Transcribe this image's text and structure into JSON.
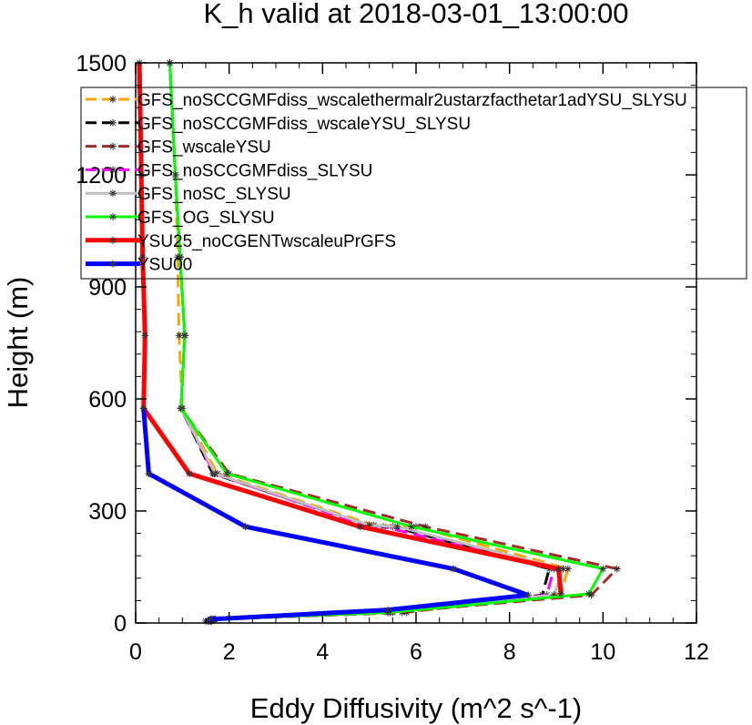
{
  "chart_data": {
    "type": "line",
    "title": "K_h valid at 2018-03-01_13:00:00",
    "xlabel": "Eddy Diffusivity (m^2 s^-1)",
    "ylabel": "Height (m)",
    "xlim": [
      0,
      12
    ],
    "ylim": [
      0,
      1500
    ],
    "xticks": [
      "0",
      "2",
      "4",
      "6",
      "8",
      "10",
      "12"
    ],
    "yticks": [
      "0",
      "300",
      "600",
      "900",
      "1200",
      "1500"
    ],
    "legend_position": "top-right, inside plot",
    "grid": false,
    "series": [
      {
        "name": "GFS_noSCCGMFdiss_wscalethermalr2ustarzfacthetar1adYSU_SLYSU",
        "color": "#ffa500",
        "dash": "dashed",
        "width": 3,
        "points": [
          [
            1.62,
            5
          ],
          [
            1.7,
            10
          ],
          [
            5.8,
            28
          ],
          [
            9.1,
            78
          ],
          [
            9.25,
            145
          ],
          [
            6.0,
            258
          ],
          [
            5.1,
            262
          ],
          [
            1.75,
            400
          ],
          [
            1.0,
            575
          ],
          [
            0.93,
            770
          ],
          [
            0.9,
            980
          ],
          [
            0.85,
            1200
          ],
          [
            0.73,
            1500
          ]
        ]
      },
      {
        "name": "GFS_noSCCGMFdiss_wscaleYSU_SLYSU",
        "color": "#000000",
        "dash": "dashed",
        "width": 3,
        "points": [
          [
            1.6,
            5
          ],
          [
            1.68,
            10
          ],
          [
            5.7,
            28
          ],
          [
            8.7,
            75
          ],
          [
            8.85,
            145
          ],
          [
            5.5,
            258
          ],
          [
            5.0,
            262
          ],
          [
            1.65,
            400
          ],
          [
            0.97,
            575
          ],
          [
            1.05,
            770
          ],
          [
            0.95,
            980
          ],
          [
            0.85,
            1200
          ],
          [
            0.73,
            1500
          ]
        ]
      },
      {
        "name": "GFS_wscaleYSU",
        "color": "#a52a2a",
        "dash": "dashed",
        "width": 3,
        "points": [
          [
            1.55,
            5
          ],
          [
            1.62,
            10
          ],
          [
            5.5,
            28
          ],
          [
            9.75,
            75
          ],
          [
            10.3,
            145
          ],
          [
            6.2,
            258
          ],
          [
            2.0,
            400
          ],
          [
            0.97,
            575
          ],
          [
            1.05,
            770
          ],
          [
            0.95,
            980
          ],
          [
            0.85,
            1200
          ],
          [
            0.73,
            1500
          ]
        ]
      },
      {
        "name": "GFS_noSCCGMFdiss_SLYSU",
        "color": "#ff00ff",
        "dash": "dashed",
        "width": 3,
        "points": [
          [
            1.6,
            5
          ],
          [
            1.66,
            10
          ],
          [
            5.4,
            28
          ],
          [
            8.8,
            75
          ],
          [
            8.95,
            145
          ],
          [
            5.3,
            258
          ],
          [
            4.9,
            262
          ],
          [
            1.68,
            400
          ],
          [
            0.97,
            575
          ],
          [
            1.05,
            770
          ],
          [
            0.95,
            980
          ],
          [
            0.85,
            1200
          ],
          [
            0.73,
            1500
          ]
        ]
      },
      {
        "name": "GFS_noSC_SLYSU",
        "color": "#c0c0c0",
        "dash": "solid",
        "width": 3,
        "points": [
          [
            1.6,
            5
          ],
          [
            1.66,
            10
          ],
          [
            5.45,
            28
          ],
          [
            8.95,
            75
          ],
          [
            9.15,
            145
          ],
          [
            5.6,
            258
          ],
          [
            5.0,
            262
          ],
          [
            1.7,
            400
          ],
          [
            0.97,
            575
          ],
          [
            1.05,
            770
          ],
          [
            0.95,
            980
          ],
          [
            0.85,
            1200
          ],
          [
            0.73,
            1500
          ]
        ]
      },
      {
        "name": "GFS_OG_SLYSU",
        "color": "#00ff00",
        "dash": "solid",
        "width": 3,
        "points": [
          [
            1.55,
            5
          ],
          [
            1.62,
            10
          ],
          [
            5.4,
            28
          ],
          [
            9.7,
            78
          ],
          [
            10.0,
            145
          ],
          [
            5.9,
            258
          ],
          [
            1.95,
            400
          ],
          [
            0.97,
            575
          ],
          [
            1.05,
            770
          ],
          [
            0.95,
            980
          ],
          [
            0.85,
            1200
          ],
          [
            0.73,
            1500
          ]
        ]
      },
      {
        "name": "YSU25_noCGENTwscaleuPrGFS",
        "color": "#ff0000",
        "dash": "solid",
        "width": 5,
        "points": [
          [
            9.1,
            78
          ],
          [
            9.05,
            145
          ],
          [
            4.8,
            258
          ],
          [
            1.15,
            400
          ],
          [
            0.17,
            575
          ],
          [
            0.2,
            770
          ],
          [
            0.15,
            980
          ],
          [
            0.12,
            1200
          ],
          [
            0.08,
            1500
          ]
        ]
      },
      {
        "name": "YSU00",
        "color": "#0000ff",
        "dash": "solid",
        "width": 5,
        "points": [
          [
            1.5,
            5
          ],
          [
            1.6,
            10
          ],
          [
            5.4,
            35
          ],
          [
            8.4,
            75
          ],
          [
            6.8,
            145
          ],
          [
            2.35,
            258
          ],
          [
            0.28,
            400
          ],
          [
            0.17,
            575
          ]
        ]
      }
    ]
  }
}
